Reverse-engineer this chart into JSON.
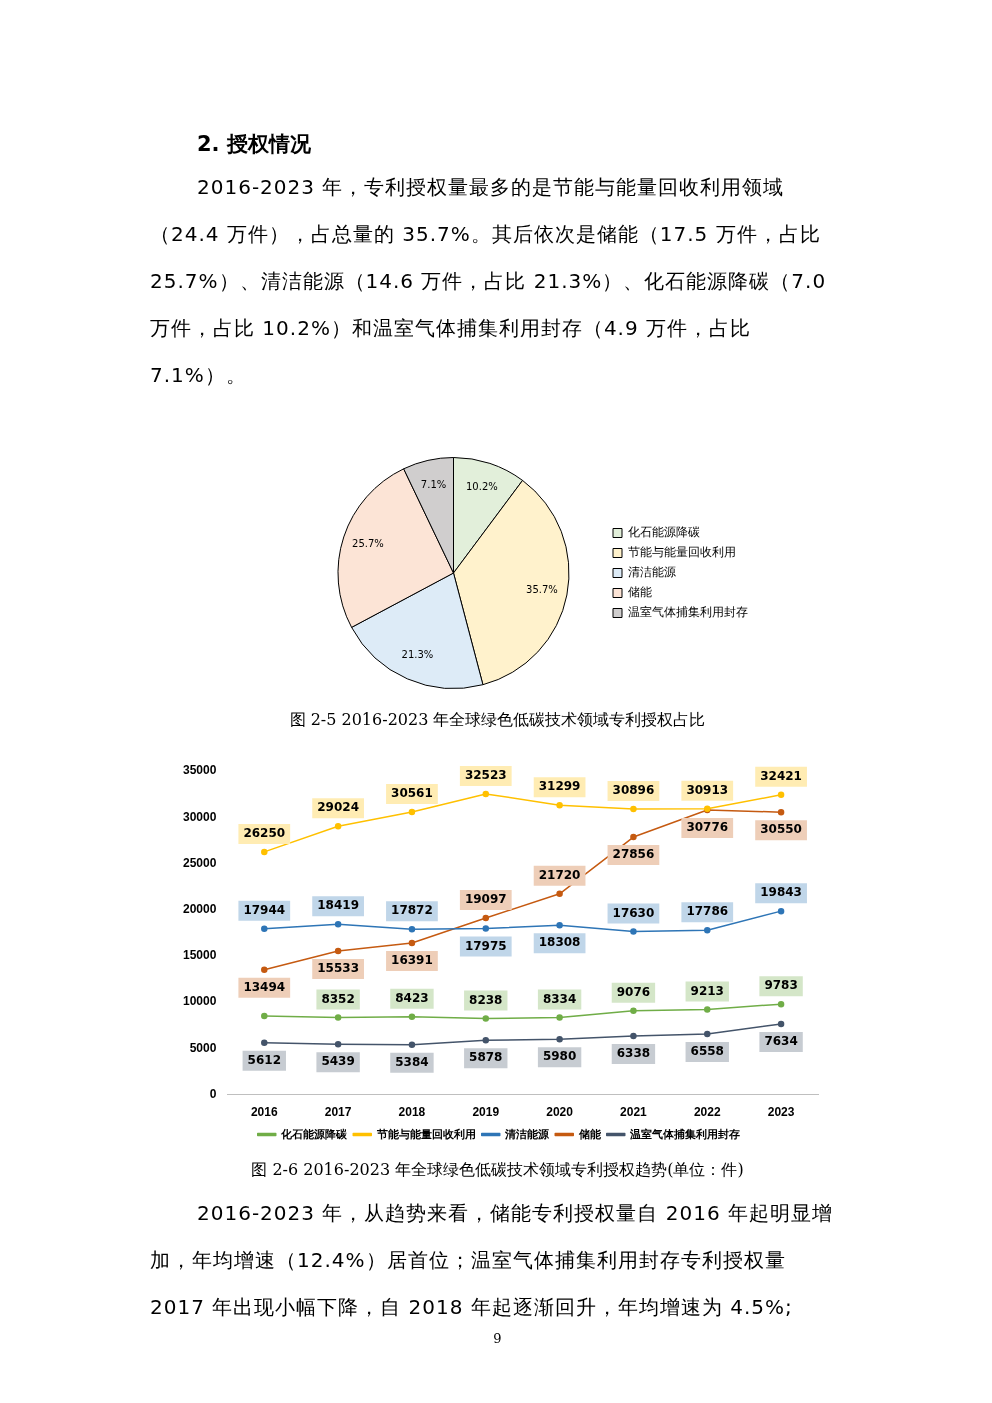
{
  "chart_data": [
    {
      "type": "pie",
      "title": "图 2-5 2016-2023 年全球绿色低碳技术领域专利授权占比",
      "annotations": [
        "2. 授权情况",
        "2016-2023 年，专利授权量最多的是节能与能量回收利用领域（24.4 万件），占总量的 35.7%。其后依次是储能（17.5 万件，占比 25.7%）、清洁能源（14.6 万件，占比 21.3%）、化石能源降碳（7.0 万件，占比 10.2%）和温室气体捕集利用封存（4.9 万件，占比 7.1%）。"
      ],
      "categories": [
        "化石能源降碳",
        "节能与能量回收利用",
        "清洁能源",
        "储能",
        "温室气体捕集利用封存"
      ],
      "values": [
        10.2,
        35.7,
        21.3,
        25.7,
        7.1
      ],
      "colors": [
        "#e2efda",
        "#fff2cc",
        "#ddebf7",
        "#fce4d6",
        "#d0cece"
      ],
      "value_labels": [
        "10.2%",
        "35.7%",
        "21.3%",
        "25.7%",
        "7.1%"
      ],
      "legend": "right"
    },
    {
      "type": "line",
      "title": "图 2-6 2016-2023 年全球绿色低碳技术领域专利授权趋势(单位：件)",
      "annotations": [
        "2016-2023 年，从趋势来看，储能专利授权量自 2016 年起明显增加，年均增速（12.4%）居首位；温室气体捕集利用封存专利授权量 2017 年出现小幅下降，自 2018 年起逐渐回升，年均增速为 4.5%;",
        "9"
      ],
      "categories": [
        "2016",
        "2017",
        "2018",
        "2019",
        "2020",
        "2021",
        "2022",
        "2023"
      ],
      "series": [
        {
          "name": "化石能源降碳",
          "color": "#70ad47",
          "values": [
            8500,
            8352,
            8423,
            8238,
            8334,
            9076,
            9213,
            9783
          ],
          "value_labels": [
            null,
            "8352",
            "8423",
            "8238",
            "8334",
            "9076",
            "9213",
            "9783"
          ]
        },
        {
          "name": "节能与能量回收利用",
          "color": "#ffc000",
          "values": [
            26250,
            29024,
            30561,
            32523,
            31299,
            30896,
            30913,
            32421
          ],
          "value_labels": [
            "26250",
            "29024",
            "30561",
            "32523",
            "31299",
            "30896",
            "30913",
            "32421"
          ]
        },
        {
          "name": "清洁能源",
          "color": "#2e75b6",
          "values": [
            17944,
            18419,
            17872,
            17975,
            18308,
            17630,
            17786,
            19843
          ],
          "value_labels": [
            "17944",
            "18419",
            "17872",
            "17975",
            "18308",
            "17630",
            "17786",
            "19843"
          ]
        },
        {
          "name": "储能",
          "color": "#c55a11",
          "values": [
            13494,
            15533,
            16391,
            19097,
            21720,
            27856,
            30776,
            30550
          ],
          "value_labels": [
            "13494",
            "15533",
            "16391",
            "19097",
            "21720",
            "27856",
            "30776",
            "30550"
          ]
        },
        {
          "name": "温室气体捕集利用封存",
          "color": "#44546a",
          "values": [
            5612,
            5439,
            5384,
            5878,
            5980,
            6338,
            6558,
            7634
          ],
          "value_labels": [
            "5612",
            "5439",
            "5384",
            "5878",
            "5980",
            "6338",
            "6558",
            "7634"
          ]
        }
      ],
      "ylim": [
        0,
        35000
      ],
      "yticks": [
        0,
        5000,
        10000,
        15000,
        20000,
        25000,
        30000,
        35000
      ],
      "grid": false,
      "legend": "bottom",
      "marker": "circle",
      "line_style": "solid"
    }
  ]
}
